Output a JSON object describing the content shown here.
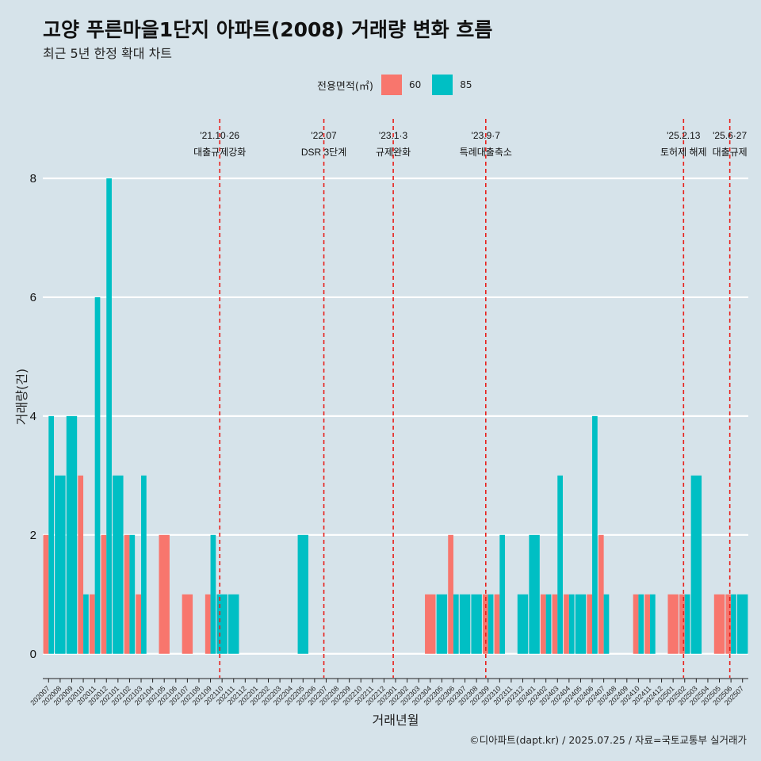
{
  "title": "고양 푸른마을1단지 아파트(2008) 거래량 변화 흐름",
  "subtitle": "최근 5년 한정 확대 차트",
  "caption": "©디아파트(dapt.kr) / 2025.07.25 / 자료=국토교통부 실거래가",
  "colors": {
    "s60": "#f8766d",
    "s85": "#00bfc4",
    "event": "#e8201b",
    "grid": "#ffffff",
    "background": "#d6e3ea"
  },
  "chart_data": {
    "type": "bar",
    "title": "고양 푸른마을1단지 아파트(2008) 거래량 변화 흐름",
    "xlabel": "거래년월",
    "ylabel": "거래량(건)",
    "ylim": [
      -0.35,
      9
    ],
    "yticks": [
      0,
      2,
      4,
      6,
      8
    ],
    "legend_title": "전용면적(㎡)",
    "categories": [
      "202007",
      "202008",
      "202009",
      "202010",
      "202011",
      "202012",
      "202101",
      "202102",
      "202103",
      "202104",
      "202105",
      "202106",
      "202107",
      "202108",
      "202109",
      "202110",
      "202111",
      "202112",
      "202201",
      "202202",
      "202203",
      "202204",
      "202205",
      "202206",
      "202207",
      "202208",
      "202209",
      "202210",
      "202211",
      "202212",
      "202301",
      "202302",
      "202303",
      "202304",
      "202305",
      "202306",
      "202307",
      "202308",
      "202309",
      "202310",
      "202311",
      "202312",
      "202401",
      "202402",
      "202403",
      "202404",
      "202405",
      "202406",
      "202407",
      "202408",
      "202409",
      "202410",
      "202411",
      "202412",
      "202501",
      "202502",
      "202503",
      "202504",
      "202505",
      "202506",
      "202507"
    ],
    "series": [
      {
        "name": "60",
        "values": [
          2,
          0,
          0,
          3,
          1,
          2,
          0,
          2,
          1,
          0,
          2,
          0,
          1,
          0,
          1,
          0,
          0,
          0,
          0,
          0,
          0,
          0,
          0,
          0,
          0,
          0,
          0,
          0,
          0,
          0,
          0,
          0,
          0,
          1,
          0,
          2,
          0,
          0,
          1,
          1,
          0,
          0,
          0,
          1,
          1,
          1,
          0,
          1,
          2,
          0,
          0,
          1,
          1,
          0,
          1,
          1,
          0,
          0,
          1,
          1,
          0
        ]
      },
      {
        "name": "85",
        "values": [
          4,
          3,
          4,
          1,
          6,
          8,
          3,
          2,
          3,
          0,
          0,
          0,
          0,
          0,
          2,
          1,
          1,
          0,
          0,
          0,
          0,
          0,
          2,
          0,
          0,
          0,
          0,
          0,
          0,
          0,
          0,
          0,
          0,
          0,
          1,
          1,
          1,
          1,
          1,
          2,
          0,
          1,
          2,
          1,
          3,
          1,
          1,
          4,
          1,
          0,
          0,
          1,
          1,
          0,
          0,
          1,
          3,
          0,
          0,
          1,
          1
        ]
      }
    ],
    "events": [
      {
        "position": 15.3,
        "date": "'21.10·26",
        "label": "대출규제강화"
      },
      {
        "position": 24.3,
        "date": "'22.07",
        "label": "DSR 3단계"
      },
      {
        "position": 30.3,
        "date": "'23.1·3",
        "label": "규제완화"
      },
      {
        "position": 38.3,
        "date": "'23.9·7",
        "label": "특례대출축소"
      },
      {
        "position": 55.4,
        "date": "'25.2.13",
        "label": "토허제 해제"
      },
      {
        "position": 59.4,
        "date": "'25.6·27",
        "label": "대출규제"
      }
    ]
  }
}
